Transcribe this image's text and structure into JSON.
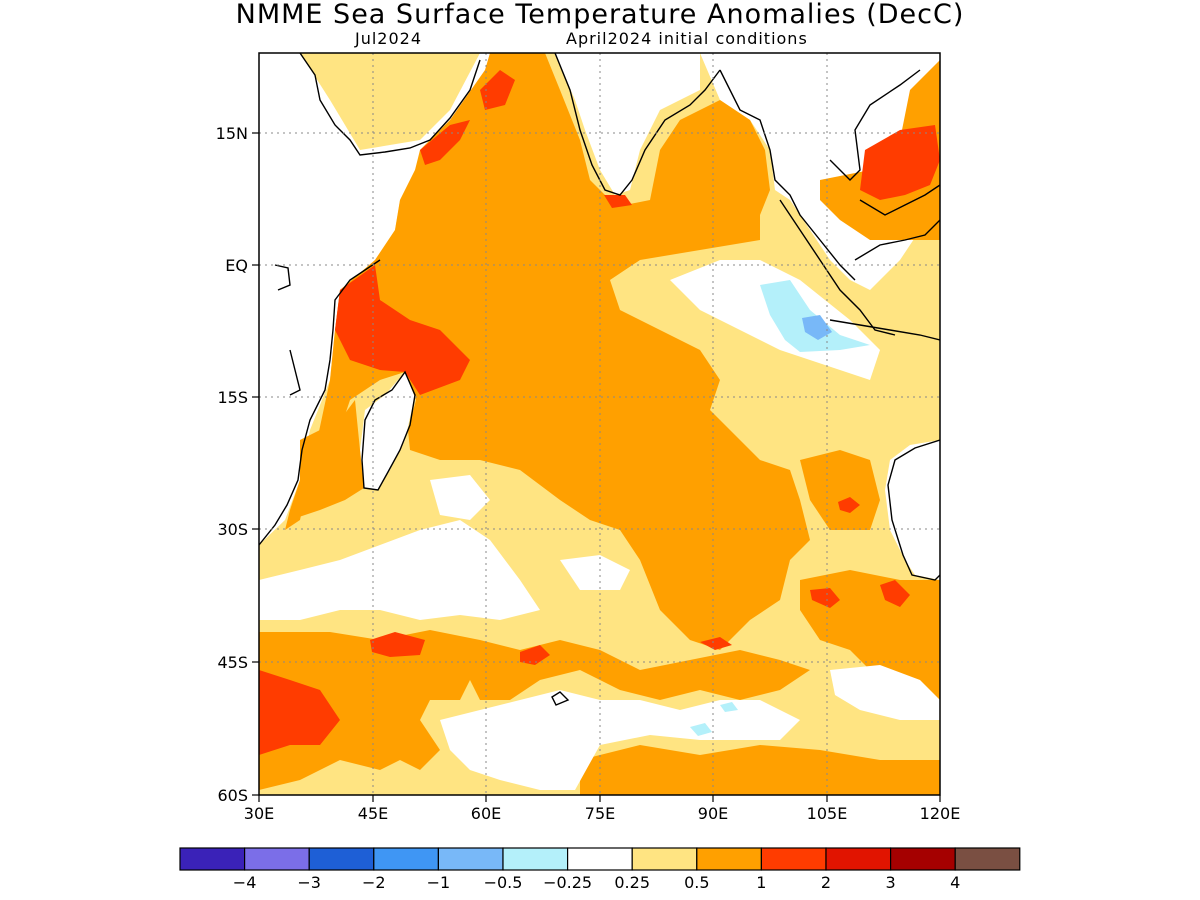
{
  "title": "NMME Sea Surface Temperature Anomalies (DecC)",
  "subtitle_left": "Jul2024",
  "subtitle_right": "April2024 initial conditions",
  "map": {
    "lon_labels": [
      "30E",
      "45E",
      "60E",
      "75E",
      "90E",
      "105E",
      "120E"
    ],
    "lat_labels": [
      "15N",
      "EQ",
      "15S",
      "30S",
      "45S",
      "60S"
    ]
  },
  "colorbar": {
    "colors": [
      "#3a22b8",
      "#7b6ee8",
      "#1e5fd6",
      "#3f96f4",
      "#78b8f8",
      "#b4f0fa",
      "#ffffff",
      "#ffe482",
      "#ffa000",
      "#ff3c00",
      "#e11400",
      "#a50000",
      "#7a4f42"
    ],
    "labels": [
      "−4",
      "−3",
      "−2",
      "−1",
      "−0.5",
      "−0.25",
      "0.25",
      "0.5",
      "1",
      "2",
      "3",
      "4"
    ]
  }
}
